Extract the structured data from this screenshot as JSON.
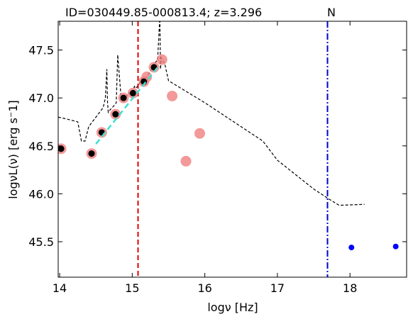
{
  "chart_data": {
    "type": "scatter",
    "title": "ID=030449.85-000813.4; z=3.296",
    "annotation": "N",
    "xlabel": "logν [Hz]",
    "ylabel": "logνL(ν) [erg s⁻1]",
    "xlim": [
      13.98,
      18.78
    ],
    "ylim": [
      45.13,
      47.8
    ],
    "x_ticks": [
      14,
      15,
      16,
      17,
      18
    ],
    "y_ticks": [
      45.5,
      46.0,
      46.5,
      47.0,
      47.5
    ],
    "x_tick_labels": [
      "14",
      "15",
      "16",
      "17",
      "18"
    ],
    "y_tick_labels": [
      "45.5",
      "46.0",
      "46.5",
      "47.0",
      "47.5"
    ],
    "grid": false,
    "colors": {
      "photometry": "#f08080",
      "detections": "#000000",
      "xray": "#0000ff",
      "template": "#000000",
      "fit": "#40e0d0",
      "red_line": "#e00000",
      "blue_line": "#0000cc"
    },
    "series": [
      {
        "role": "template",
        "style": "dashed black line",
        "x": [
          13.98,
          14.1,
          14.25,
          14.3,
          14.35,
          14.4,
          14.5,
          14.6,
          14.63,
          14.65,
          14.66,
          14.67,
          14.7,
          14.75,
          14.78,
          14.8,
          14.85,
          14.9,
          14.95,
          15.0,
          15.03,
          15.05,
          15.1,
          15.13,
          15.15,
          15.2,
          15.25,
          15.3,
          15.33,
          15.35,
          15.38,
          15.39,
          15.4,
          15.45,
          15.5,
          16.0,
          16.5,
          16.8,
          17.0,
          17.5,
          17.7,
          17.85,
          18.2
        ],
        "y": [
          46.8,
          46.78,
          46.75,
          46.55,
          46.55,
          46.7,
          46.8,
          46.9,
          47.0,
          47.3,
          46.95,
          46.85,
          46.88,
          46.92,
          46.95,
          47.45,
          46.97,
          47.0,
          47.05,
          47.05,
          47.12,
          47.1,
          47.15,
          47.2,
          47.2,
          47.22,
          47.28,
          47.35,
          47.38,
          47.4,
          47.85,
          47.3,
          47.42,
          47.35,
          47.18,
          46.95,
          46.7,
          46.55,
          46.35,
          46.05,
          45.95,
          45.88,
          45.89
        ]
      },
      {
        "role": "fit",
        "style": "dashed turquoise line",
        "x": [
          14.5,
          15.35
        ],
        "y": [
          46.52,
          47.32
        ]
      },
      {
        "role": "photometry",
        "style": "light red circles",
        "x": [
          14.02,
          14.44,
          14.58,
          14.77,
          14.88,
          15.01,
          15.16,
          15.2,
          15.3,
          15.41,
          15.55,
          15.74,
          15.93
        ],
        "y": [
          46.47,
          46.42,
          46.64,
          46.83,
          47.0,
          47.05,
          47.17,
          47.22,
          47.32,
          47.4,
          47.02,
          46.34,
          46.63
        ]
      },
      {
        "role": "detections",
        "style": "small black dots",
        "x": [
          14.02,
          14.44,
          14.58,
          14.77,
          14.88,
          15.01,
          15.16,
          15.3
        ],
        "y": [
          46.47,
          46.42,
          46.64,
          46.83,
          47.0,
          47.05,
          47.17,
          47.32
        ]
      },
      {
        "role": "xray",
        "style": "blue dots",
        "x": [
          18.02,
          18.63
        ],
        "y": [
          45.44,
          45.45
        ]
      }
    ],
    "vlines": [
      {
        "x": 15.08,
        "style": "red dashed"
      },
      {
        "x": 17.69,
        "style": "blue dash-dot"
      }
    ]
  }
}
